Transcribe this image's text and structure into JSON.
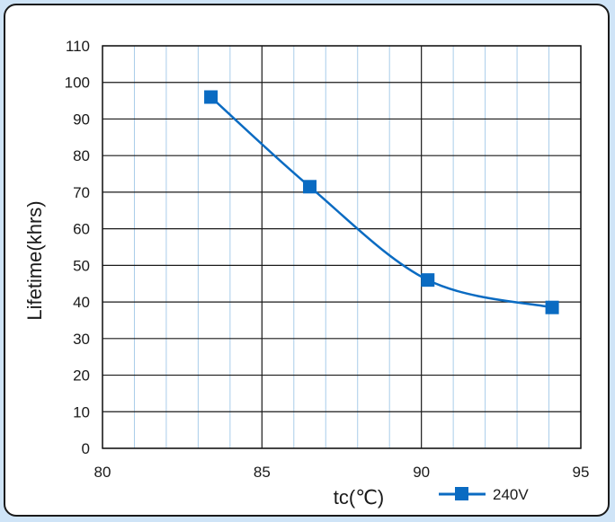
{
  "chart_data": {
    "type": "line",
    "title": "",
    "xlabel": "tc(℃)",
    "ylabel": "Lifetime(khrs)",
    "xlim": [
      80,
      95
    ],
    "ylim": [
      0,
      110
    ],
    "x_ticks": [
      "80",
      "85",
      "90",
      "95"
    ],
    "y_ticks": [
      "0",
      "10",
      "20",
      "30",
      "40",
      "50",
      "60",
      "70",
      "80",
      "90",
      "100",
      "110"
    ],
    "grid": true,
    "legend_position": "bottom-right",
    "series": [
      {
        "name": "240V",
        "color": "#0a6bc2",
        "marker": "square",
        "x": [
          83.4,
          86.5,
          90.2,
          94.1
        ],
        "y": [
          96,
          71.5,
          46,
          38.5
        ]
      }
    ]
  }
}
